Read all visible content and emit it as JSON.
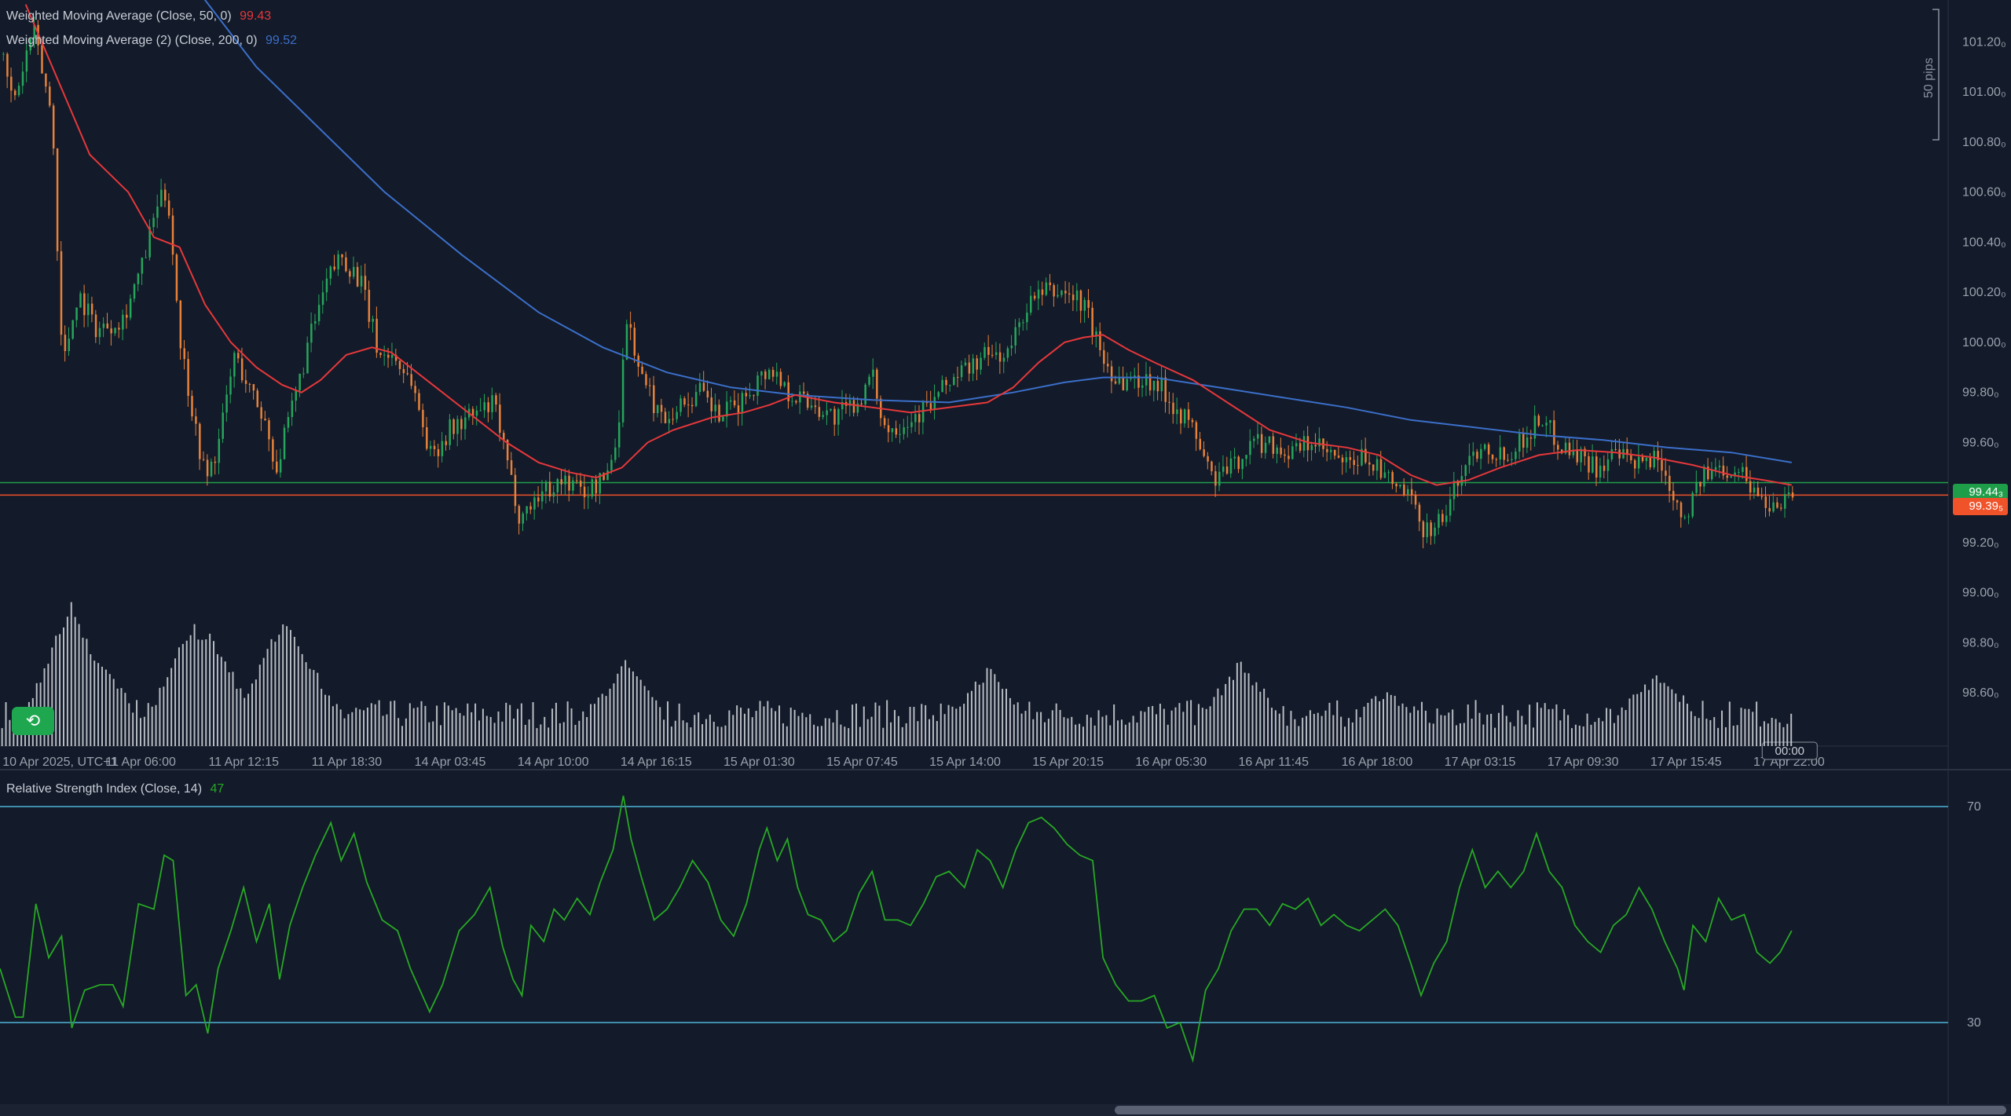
{
  "chart_data": [
    {
      "type": "candlestick",
      "instrument_pane": "price",
      "legend": [
        {
          "label": "Weighted Moving Average (Close, 50, 0)",
          "value": "99.43",
          "color": "#e5383b"
        },
        {
          "label": "Weighted Moving Average (2) (Close, 200, 0)",
          "value": "99.52",
          "color": "#3b6fc9"
        }
      ],
      "y_ticks": [
        "101.20₀",
        "101.00₀",
        "100.80₀",
        "100.60₀",
        "100.40₀",
        "100.20₀",
        "100.00₀",
        "99.80₀",
        "99.60₀",
        "99.40₀",
        "99.20₀",
        "99.00₀",
        "98.80₀",
        "98.60₀"
      ],
      "y_tick_values": [
        101.2,
        101.0,
        100.8,
        100.6,
        100.4,
        100.2,
        100.0,
        99.8,
        99.6,
        99.4,
        99.2,
        99.0,
        98.8,
        98.6
      ],
      "ylim": [
        98.45,
        101.33
      ],
      "x_ticks": [
        "10 Apr 2025, UTC+1",
        "11 Apr 06:00",
        "11 Apr 12:15",
        "11 Apr 18:30",
        "14 Apr 03:45",
        "14 Apr 10:00",
        "14 Apr 16:15",
        "15 Apr 01:30",
        "15 Apr 07:45",
        "15 Apr 14:00",
        "15 Apr 20:15",
        "16 Apr 05:30",
        "16 Apr 11:45",
        "16 Apr 18:00",
        "17 Apr 03:15",
        "17 Apr 09:30",
        "17 Apr 15:45",
        "17 Apr 22:00"
      ],
      "cursor_time_label": "00:00",
      "scale_label": "50 pips",
      "price_lines": [
        {
          "value": 99.44,
          "label": "99.44₃",
          "color": "#1f9e4a"
        },
        {
          "value": 99.39,
          "label": "99.39₅",
          "color": "#f0522a"
        }
      ],
      "close_path": [
        [
          0,
          101.15
        ],
        [
          10,
          100.95
        ],
        [
          25,
          101.25
        ],
        [
          40,
          100.9
        ],
        [
          48,
          99.9
        ],
        [
          60,
          100.2
        ],
        [
          75,
          100.05
        ],
        [
          95,
          100.1
        ],
        [
          110,
          100.3
        ],
        [
          122,
          100.55
        ],
        [
          130,
          100.6
        ],
        [
          140,
          100.0
        ],
        [
          152,
          99.65
        ],
        [
          160,
          99.45
        ],
        [
          170,
          99.6
        ],
        [
          182,
          99.95
        ],
        [
          195,
          99.8
        ],
        [
          205,
          99.7
        ],
        [
          215,
          99.5
        ],
        [
          228,
          99.75
        ],
        [
          240,
          100.0
        ],
        [
          255,
          100.25
        ],
        [
          265,
          100.35
        ],
        [
          280,
          100.25
        ],
        [
          295,
          99.95
        ],
        [
          305,
          99.95
        ],
        [
          320,
          99.85
        ],
        [
          335,
          99.55
        ],
        [
          350,
          99.65
        ],
        [
          365,
          99.7
        ],
        [
          385,
          99.75
        ],
        [
          395,
          99.5
        ],
        [
          405,
          99.3
        ],
        [
          420,
          99.4
        ],
        [
          440,
          99.45
        ],
        [
          455,
          99.4
        ],
        [
          470,
          99.45
        ],
        [
          480,
          99.6
        ],
        [
          488,
          100.1
        ],
        [
          500,
          99.85
        ],
        [
          515,
          99.7
        ],
        [
          530,
          99.75
        ],
        [
          545,
          99.8
        ],
        [
          560,
          99.7
        ],
        [
          575,
          99.75
        ],
        [
          590,
          99.85
        ],
        [
          600,
          99.9
        ],
        [
          615,
          99.8
        ],
        [
          635,
          99.75
        ],
        [
          650,
          99.7
        ],
        [
          665,
          99.75
        ],
        [
          680,
          99.85
        ],
        [
          690,
          99.65
        ],
        [
          710,
          99.7
        ],
        [
          725,
          99.75
        ],
        [
          740,
          99.85
        ],
        [
          755,
          99.9
        ],
        [
          770,
          99.95
        ],
        [
          785,
          99.95
        ],
        [
          800,
          100.15
        ],
        [
          815,
          100.2
        ],
        [
          830,
          100.2
        ],
        [
          845,
          100.15
        ],
        [
          858,
          99.95
        ],
        [
          870,
          99.85
        ],
        [
          885,
          99.85
        ],
        [
          900,
          99.85
        ],
        [
          915,
          99.75
        ],
        [
          930,
          99.65
        ],
        [
          945,
          99.45
        ],
        [
          960,
          99.5
        ],
        [
          975,
          99.6
        ],
        [
          990,
          99.6
        ],
        [
          1005,
          99.55
        ],
        [
          1020,
          99.6
        ],
        [
          1035,
          99.55
        ],
        [
          1050,
          99.5
        ],
        [
          1065,
          99.55
        ],
        [
          1080,
          99.45
        ],
        [
          1095,
          99.4
        ],
        [
          1110,
          99.25
        ],
        [
          1125,
          99.3
        ],
        [
          1140,
          99.5
        ],
        [
          1155,
          99.6
        ],
        [
          1170,
          99.55
        ],
        [
          1185,
          99.6
        ],
        [
          1200,
          99.7
        ],
        [
          1215,
          99.6
        ],
        [
          1230,
          99.55
        ],
        [
          1245,
          99.5
        ],
        [
          1260,
          99.55
        ],
        [
          1275,
          99.5
        ],
        [
          1290,
          99.55
        ],
        [
          1300,
          99.45
        ],
        [
          1312,
          99.3
        ],
        [
          1325,
          99.45
        ],
        [
          1340,
          99.5
        ],
        [
          1355,
          99.5
        ],
        [
          1368,
          99.4
        ],
        [
          1380,
          99.35
        ],
        [
          1395,
          99.4
        ]
      ],
      "wma50_path": [
        [
          20,
          101.35
        ],
        [
          45,
          101.05
        ],
        [
          70,
          100.75
        ],
        [
          100,
          100.6
        ],
        [
          120,
          100.42
        ],
        [
          140,
          100.38
        ],
        [
          160,
          100.15
        ],
        [
          180,
          100.0
        ],
        [
          200,
          99.9
        ],
        [
          220,
          99.83
        ],
        [
          235,
          99.8
        ],
        [
          250,
          99.85
        ],
        [
          270,
          99.95
        ],
        [
          290,
          99.98
        ],
        [
          305,
          99.96
        ],
        [
          320,
          99.9
        ],
        [
          345,
          99.8
        ],
        [
          370,
          99.7
        ],
        [
          395,
          99.6
        ],
        [
          420,
          99.52
        ],
        [
          445,
          99.48
        ],
        [
          465,
          99.46
        ],
        [
          485,
          99.5
        ],
        [
          505,
          99.6
        ],
        [
          525,
          99.65
        ],
        [
          555,
          99.7
        ],
        [
          580,
          99.72
        ],
        [
          600,
          99.75
        ],
        [
          620,
          99.79
        ],
        [
          650,
          99.76
        ],
        [
          680,
          99.74
        ],
        [
          710,
          99.72
        ],
        [
          740,
          99.74
        ],
        [
          770,
          99.76
        ],
        [
          790,
          99.82
        ],
        [
          810,
          99.92
        ],
        [
          830,
          100.0
        ],
        [
          845,
          100.02
        ],
        [
          860,
          100.03
        ],
        [
          880,
          99.97
        ],
        [
          900,
          99.92
        ],
        [
          930,
          99.85
        ],
        [
          960,
          99.75
        ],
        [
          990,
          99.65
        ],
        [
          1020,
          99.6
        ],
        [
          1050,
          99.58
        ],
        [
          1075,
          99.55
        ],
        [
          1100,
          99.47
        ],
        [
          1120,
          99.43
        ],
        [
          1145,
          99.45
        ],
        [
          1170,
          99.5
        ],
        [
          1200,
          99.55
        ],
        [
          1230,
          99.57
        ],
        [
          1260,
          99.56
        ],
        [
          1290,
          99.54
        ],
        [
          1320,
          99.51
        ],
        [
          1350,
          99.47
        ],
        [
          1375,
          99.45
        ],
        [
          1397,
          99.43
        ]
      ],
      "wma200_path": [
        [
          155,
          101.4
        ],
        [
          200,
          101.1
        ],
        [
          240,
          100.9
        ],
        [
          300,
          100.6
        ],
        [
          360,
          100.35
        ],
        [
          420,
          100.12
        ],
        [
          470,
          99.98
        ],
        [
          520,
          99.88
        ],
        [
          570,
          99.82
        ],
        [
          620,
          99.79
        ],
        [
          680,
          99.77
        ],
        [
          740,
          99.76
        ],
        [
          790,
          99.8
        ],
        [
          830,
          99.84
        ],
        [
          860,
          99.86
        ],
        [
          900,
          99.86
        ],
        [
          950,
          99.82
        ],
        [
          1000,
          99.78
        ],
        [
          1050,
          99.74
        ],
        [
          1100,
          99.69
        ],
        [
          1150,
          99.66
        ],
        [
          1200,
          99.63
        ],
        [
          1250,
          99.61
        ],
        [
          1300,
          99.58
        ],
        [
          1350,
          99.56
        ],
        [
          1397,
          99.52
        ]
      ],
      "annotation": "Volume histogram in lower area of price pane"
    },
    {
      "type": "line",
      "title": "Relative Strength Index (Close, 14)",
      "value": "47",
      "color": "#27a825",
      "levels": [
        70,
        30
      ],
      "level_labels": [
        "70",
        "30"
      ],
      "ylim": [
        15,
        75
      ],
      "path": [
        [
          0,
          40
        ],
        [
          12,
          31
        ],
        [
          18,
          31
        ],
        [
          28,
          52
        ],
        [
          38,
          42
        ],
        [
          48,
          46
        ],
        [
          56,
          29
        ],
        [
          66,
          36
        ],
        [
          78,
          37
        ],
        [
          88,
          37
        ],
        [
          96,
          33
        ],
        [
          108,
          52
        ],
        [
          120,
          51
        ],
        [
          128,
          61
        ],
        [
          135,
          60
        ],
        [
          145,
          35
        ],
        [
          153,
          37
        ],
        [
          162,
          28
        ],
        [
          170,
          40
        ],
        [
          180,
          47
        ],
        [
          190,
          55
        ],
        [
          200,
          45
        ],
        [
          210,
          52
        ],
        [
          218,
          38
        ],
        [
          226,
          48
        ],
        [
          236,
          55
        ],
        [
          246,
          61
        ],
        [
          258,
          67
        ],
        [
          266,
          60
        ],
        [
          276,
          65
        ],
        [
          286,
          56
        ],
        [
          298,
          49
        ],
        [
          310,
          47
        ],
        [
          320,
          40
        ],
        [
          335,
          32
        ],
        [
          345,
          37
        ],
        [
          358,
          47
        ],
        [
          370,
          50
        ],
        [
          382,
          55
        ],
        [
          392,
          44
        ],
        [
          400,
          38
        ],
        [
          407,
          35
        ],
        [
          414,
          48
        ],
        [
          424,
          45
        ],
        [
          432,
          51
        ],
        [
          440,
          49
        ],
        [
          450,
          53
        ],
        [
          460,
          50
        ],
        [
          468,
          56
        ],
        [
          478,
          62
        ],
        [
          486,
          72
        ],
        [
          492,
          64
        ],
        [
          500,
          57
        ],
        [
          510,
          49
        ],
        [
          520,
          51
        ],
        [
          530,
          55
        ],
        [
          540,
          60
        ],
        [
          552,
          56
        ],
        [
          562,
          49
        ],
        [
          572,
          46
        ],
        [
          582,
          52
        ],
        [
          592,
          62
        ],
        [
          598,
          66
        ],
        [
          606,
          60
        ],
        [
          614,
          64
        ],
        [
          622,
          55
        ],
        [
          630,
          50
        ],
        [
          640,
          49
        ],
        [
          650,
          45
        ],
        [
          660,
          47
        ],
        [
          670,
          54
        ],
        [
          680,
          58
        ],
        [
          690,
          49
        ],
        [
          700,
          49
        ],
        [
          710,
          48
        ],
        [
          720,
          52
        ],
        [
          730,
          57
        ],
        [
          740,
          58
        ],
        [
          752,
          55
        ],
        [
          762,
          62
        ],
        [
          772,
          60
        ],
        [
          782,
          55
        ],
        [
          792,
          62
        ],
        [
          802,
          67
        ],
        [
          812,
          68
        ],
        [
          822,
          66
        ],
        [
          832,
          63
        ],
        [
          842,
          61
        ],
        [
          852,
          60
        ],
        [
          860,
          42
        ],
        [
          870,
          37
        ],
        [
          880,
          34
        ],
        [
          890,
          34
        ],
        [
          900,
          35
        ],
        [
          910,
          29
        ],
        [
          920,
          30
        ],
        [
          930,
          23
        ],
        [
          940,
          36
        ],
        [
          950,
          40
        ],
        [
          960,
          47
        ],
        [
          970,
          51
        ],
        [
          980,
          51
        ],
        [
          990,
          48
        ],
        [
          1000,
          52
        ],
        [
          1010,
          51
        ],
        [
          1020,
          53
        ],
        [
          1030,
          48
        ],
        [
          1040,
          50
        ],
        [
          1050,
          48
        ],
        [
          1060,
          47
        ],
        [
          1070,
          49
        ],
        [
          1080,
          51
        ],
        [
          1090,
          48
        ],
        [
          1100,
          41
        ],
        [
          1108,
          35
        ],
        [
          1118,
          41
        ],
        [
          1128,
          45
        ],
        [
          1138,
          55
        ],
        [
          1148,
          62
        ],
        [
          1158,
          55
        ],
        [
          1168,
          58
        ],
        [
          1178,
          55
        ],
        [
          1188,
          58
        ],
        [
          1198,
          65
        ],
        [
          1208,
          58
        ],
        [
          1218,
          55
        ],
        [
          1228,
          48
        ],
        [
          1238,
          45
        ],
        [
          1248,
          43
        ],
        [
          1258,
          48
        ],
        [
          1268,
          50
        ],
        [
          1278,
          55
        ],
        [
          1288,
          51
        ],
        [
          1298,
          45
        ],
        [
          1308,
          40
        ],
        [
          1313,
          36
        ],
        [
          1320,
          48
        ],
        [
          1330,
          45
        ],
        [
          1340,
          53
        ],
        [
          1350,
          49
        ],
        [
          1360,
          50
        ],
        [
          1370,
          43
        ],
        [
          1380,
          41
        ],
        [
          1388,
          43
        ],
        [
          1397,
          47
        ]
      ]
    }
  ],
  "volume": {
    "spikes": [
      [
        55,
        105
      ],
      [
        77,
        60
      ],
      [
        150,
        90
      ],
      [
        163,
        80
      ],
      [
        220,
        93
      ],
      [
        227,
        85
      ],
      [
        487,
        58
      ],
      [
        770,
        54
      ],
      [
        967,
        59
      ],
      [
        1080,
        38
      ],
      [
        1289,
        48
      ],
      [
        1300,
        43
      ]
    ]
  },
  "ui": {
    "replay_icon": "replay-icon"
  },
  "colors": {
    "background": "#131a29",
    "grid": "#1e2536",
    "up": "#26a65b",
    "down": "#e8823a",
    "level_line": "#4fb3d9",
    "volume": "#d5d8dd"
  }
}
